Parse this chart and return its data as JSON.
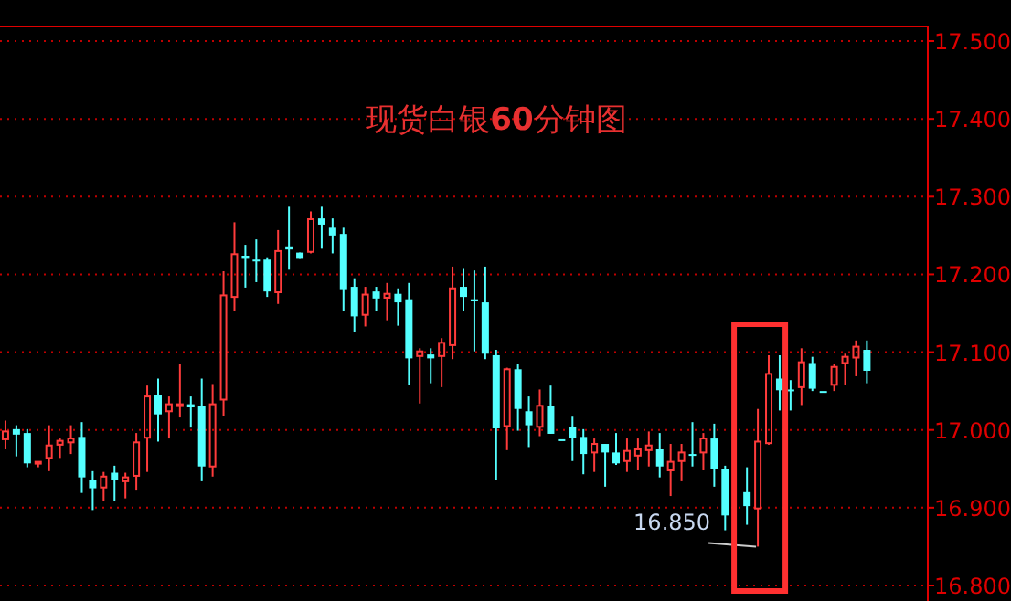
{
  "chart_data": {
    "type": "candlestick",
    "title": "现货白银**60**分钟图",
    "categories": [
      null,
      null,
      null,
      null,
      null,
      null,
      null,
      null,
      null,
      null,
      null,
      null,
      null,
      null,
      null,
      null,
      null,
      null,
      null,
      null,
      null,
      null,
      null,
      null,
      null,
      null,
      null,
      null,
      null,
      null,
      null,
      null,
      null,
      null,
      null,
      null,
      null,
      null,
      null,
      null,
      null,
      null,
      null,
      null,
      null,
      null,
      null,
      null,
      null,
      null,
      null,
      null,
      null,
      null,
      null,
      null,
      null,
      null,
      null,
      null,
      null,
      null,
      null,
      null,
      null,
      null,
      null,
      null,
      null,
      null,
      null,
      null,
      null,
      null,
      null,
      null,
      null,
      null,
      null,
      null,
      null,
      null,
      null,
      null,
      null
    ],
    "ohlc": [
      [
        16.988,
        17.012,
        16.975,
        16.998
      ],
      [
        17.001,
        17.006,
        16.966,
        16.994
      ],
      [
        16.996,
        17.001,
        16.952,
        16.957
      ],
      [
        16.957,
        16.959,
        16.952,
        16.959
      ],
      [
        16.964,
        17.006,
        16.947,
        16.98
      ],
      [
        16.981,
        16.989,
        16.964,
        16.986
      ],
      [
        16.984,
        17.006,
        16.969,
        16.989
      ],
      [
        16.991,
        17.01,
        16.919,
        16.939
      ],
      [
        16.936,
        16.947,
        16.897,
        16.925
      ],
      [
        16.926,
        16.946,
        16.908,
        16.94
      ],
      [
        16.945,
        16.954,
        16.908,
        16.936
      ],
      [
        16.934,
        16.945,
        16.912,
        16.939
      ],
      [
        16.941,
        16.996,
        16.922,
        16.984
      ],
      [
        16.99,
        17.057,
        16.946,
        17.043
      ],
      [
        17.045,
        17.066,
        16.985,
        17.02
      ],
      [
        17.024,
        17.043,
        16.989,
        17.033
      ],
      [
        17.032,
        17.085,
        17.016,
        17.033
      ],
      [
        17.033,
        17.043,
        17.003,
        17.029
      ],
      [
        17.031,
        17.066,
        16.934,
        16.953
      ],
      [
        16.953,
        17.059,
        16.94,
        17.033
      ],
      [
        17.039,
        17.204,
        17.018,
        17.173
      ],
      [
        17.171,
        17.267,
        17.153,
        17.226
      ],
      [
        17.224,
        17.238,
        17.183,
        17.22
      ],
      [
        17.219,
        17.245,
        17.19,
        17.218
      ],
      [
        17.219,
        17.222,
        17.171,
        17.178
      ],
      [
        17.177,
        17.257,
        17.162,
        17.23
      ],
      [
        17.236,
        17.287,
        17.206,
        17.232
      ],
      [
        17.228,
        17.228,
        17.22,
        17.22
      ],
      [
        17.229,
        17.281,
        17.227,
        17.271
      ],
      [
        17.272,
        17.287,
        17.233,
        17.264
      ],
      [
        17.26,
        17.272,
        17.227,
        17.25
      ],
      [
        17.252,
        17.26,
        17.153,
        17.181
      ],
      [
        17.184,
        17.195,
        17.126,
        17.146
      ],
      [
        17.148,
        17.184,
        17.133,
        17.174
      ],
      [
        17.178,
        17.184,
        17.153,
        17.169
      ],
      [
        17.17,
        17.189,
        17.141,
        17.175
      ],
      [
        17.175,
        17.182,
        17.134,
        17.164
      ],
      [
        17.168,
        17.189,
        17.058,
        17.092
      ],
      [
        17.095,
        17.105,
        17.034,
        17.101
      ],
      [
        17.097,
        17.105,
        17.06,
        17.092
      ],
      [
        17.095,
        17.118,
        17.055,
        17.112
      ],
      [
        17.109,
        17.21,
        17.091,
        17.182
      ],
      [
        17.184,
        17.208,
        17.153,
        17.171
      ],
      [
        17.168,
        17.205,
        17.101,
        17.166
      ],
      [
        17.164,
        17.21,
        17.091,
        17.098
      ],
      [
        17.096,
        17.103,
        16.936,
        17.002
      ],
      [
        17.005,
        17.08,
        16.974,
        17.078
      ],
      [
        17.078,
        17.085,
        16.999,
        17.027
      ],
      [
        17.024,
        17.043,
        16.978,
        17.006
      ],
      [
        17.004,
        17.052,
        16.992,
        17.031
      ],
      [
        17.031,
        17.057,
        16.995,
        16.995
      ],
      [
        16.988,
        16.988,
        16.988,
        16.988
      ],
      [
        17.004,
        17.017,
        16.96,
        16.99
      ],
      [
        16.991,
        17.001,
        16.943,
        16.969
      ],
      [
        16.971,
        16.989,
        16.946,
        16.982
      ],
      [
        16.982,
        16.982,
        16.927,
        16.971
      ],
      [
        16.971,
        16.996,
        16.955,
        16.957
      ],
      [
        16.96,
        16.989,
        16.946,
        16.973
      ],
      [
        16.967,
        16.989,
        16.948,
        16.975
      ],
      [
        16.974,
        16.998,
        16.953,
        16.98
      ],
      [
        16.975,
        16.996,
        16.939,
        16.953
      ],
      [
        16.948,
        16.982,
        16.915,
        16.959
      ],
      [
        16.96,
        16.982,
        16.934,
        16.971
      ],
      [
        16.969,
        17.01,
        16.953,
        16.967
      ],
      [
        16.971,
        16.996,
        16.948,
        16.989
      ],
      [
        16.989,
        17.008,
        16.927,
        16.95
      ],
      [
        16.95,
        16.954,
        16.871,
        16.89
      ],
      null,
      [
        16.92,
        16.952,
        16.878,
        16.902
      ],
      [
        16.899,
        17.027,
        16.85,
        16.985
      ],
      [
        16.983,
        17.096,
        16.981,
        17.072
      ],
      [
        17.066,
        17.096,
        17.025,
        17.051
      ],
      [
        17.052,
        17.064,
        17.025,
        17.05
      ],
      [
        17.055,
        17.105,
        17.032,
        17.087
      ],
      [
        17.086,
        17.094,
        17.05,
        17.053
      ],
      [
        17.05,
        17.05,
        17.05,
        17.05
      ],
      [
        17.058,
        17.085,
        17.05,
        17.081
      ],
      [
        17.086,
        17.098,
        17.058,
        17.094
      ],
      [
        17.093,
        17.115,
        17.069,
        17.107
      ],
      [
        17.103,
        17.115,
        17.06,
        17.076
      ],
      null,
      null,
      null,
      null,
      null
    ],
    "ylim": [
      16.78,
      17.52
    ],
    "yticks": [
      {
        "value": 16.8,
        "label": "16.800"
      },
      {
        "value": 16.9,
        "label": "16.900"
      },
      {
        "value": 17.0,
        "label": "17.000"
      },
      {
        "value": 17.1,
        "label": "17.100"
      },
      {
        "value": 17.2,
        "label": "17.200"
      },
      {
        "value": 17.3,
        "label": "17.300"
      },
      {
        "value": 17.4,
        "label": "17.400"
      },
      {
        "value": 17.5,
        "label": "17.500"
      }
    ],
    "grid": "y",
    "annotations": [
      "16.850"
    ]
  }
}
